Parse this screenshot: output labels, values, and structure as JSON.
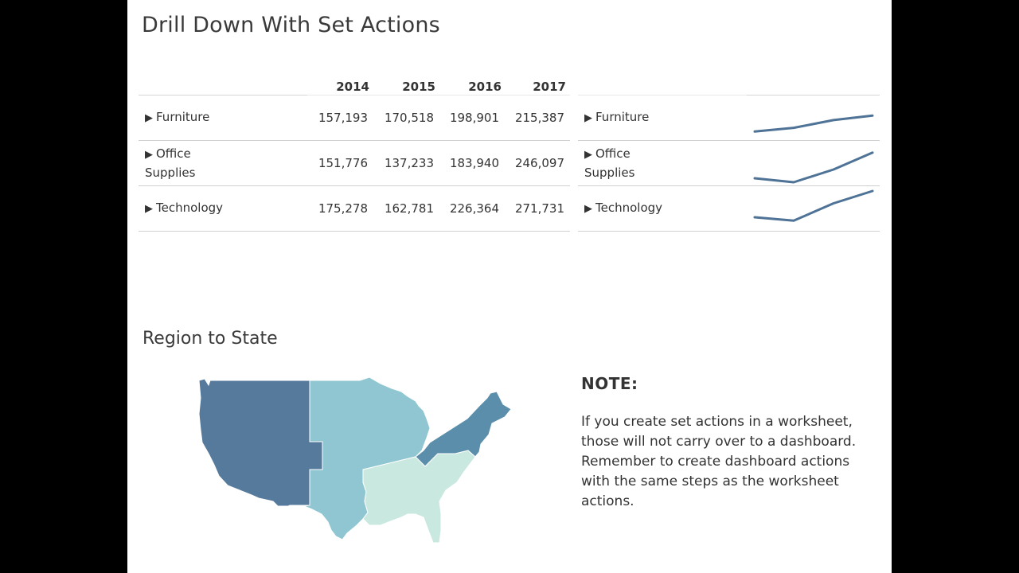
{
  "dashboard": {
    "title": "Drill Down With Set Actions",
    "map_title": "Region to State"
  },
  "crosstab": {
    "years": [
      "2014",
      "2015",
      "2016",
      "2017"
    ],
    "rows": [
      {
        "label": "Furniture",
        "values": [
          "157,193",
          "170,518",
          "198,901",
          "215,387"
        ]
      },
      {
        "label": "Office Supplies",
        "values": [
          "151,776",
          "137,233",
          "183,940",
          "246,097"
        ]
      },
      {
        "label": "Technology",
        "values": [
          "175,278",
          "162,781",
          "226,364",
          "271,731"
        ]
      }
    ]
  },
  "sparklines": {
    "line_color": "#4e7396",
    "rows": [
      {
        "label": "Furniture",
        "values": [
          157193,
          170518,
          198901,
          215387
        ]
      },
      {
        "label": "Office Supplies",
        "values": [
          151776,
          137233,
          183940,
          246097
        ]
      },
      {
        "label": "Technology",
        "values": [
          175278,
          162781,
          226364,
          271731
        ]
      }
    ]
  },
  "map": {
    "regions": [
      {
        "name": "West",
        "color": "#557a9c"
      },
      {
        "name": "Central",
        "color": "#8fc6d2"
      },
      {
        "name": "East",
        "color": "#5b8eab"
      },
      {
        "name": "South",
        "color": "#c9e8e0"
      }
    ]
  },
  "note": {
    "heading": "NOTE:",
    "body": "If you create set actions in a worksheet, those will not carry over to a dashboard. Remember to create dashboard actions with the same steps as the worksheet actions."
  }
}
